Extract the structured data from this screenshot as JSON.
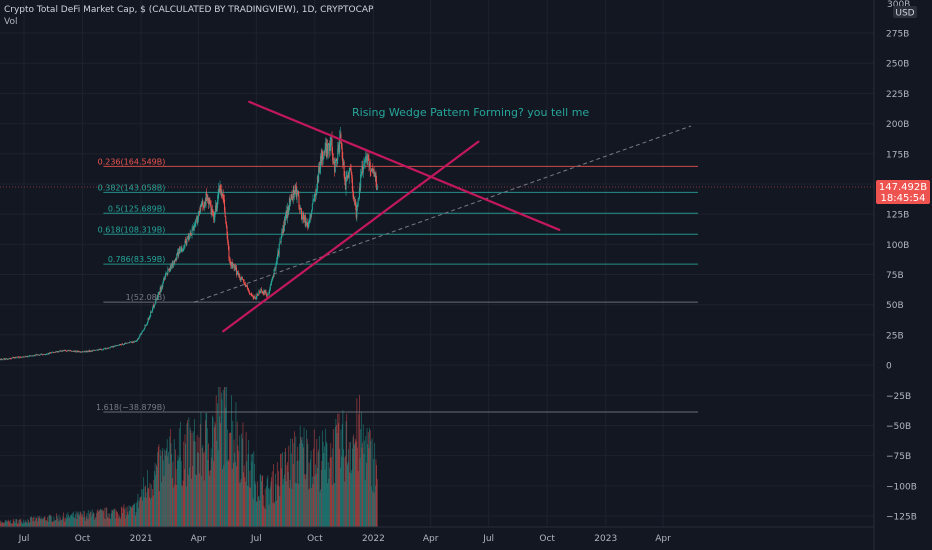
{
  "header": {
    "symbol_title": "Crypto Total DeFi Market Cap, $ (CALCULATED BY TRADINGVIEW), 1D, CRYPTOCAP",
    "volume_label": "Vol"
  },
  "price_scale": {
    "currency": "USD",
    "top_label": "300B"
  },
  "current_price": {
    "value_label": "147.492B",
    "countdown": "18:45:54",
    "value": 147.492
  },
  "annotation": {
    "text": "Rising Wedge Pattern Forming? you tell me"
  },
  "colors": {
    "background": "#131722",
    "candle_up": "#26a69a",
    "candle_down": "#ef5350",
    "wedge_line": "#c2185b",
    "annotation_text": "#26a69a",
    "fib_level_red": "#ef5350",
    "fib_level_teal": "#26a69a",
    "fib_level_gray": "#787b86",
    "trend_extension": "#787b86"
  },
  "chart_data": {
    "type": "candlestick",
    "title": "Crypto Total DeFi Market Cap, $ (CALCULATED BY TRADINGVIEW), 1D, CRYPTOCAP",
    "y_unit": "B",
    "ylim": [
      -135,
      300
    ],
    "y_ticks": [
      {
        "label": "275B",
        "value": 275
      },
      {
        "label": "250B",
        "value": 250
      },
      {
        "label": "225B",
        "value": 225
      },
      {
        "label": "200B",
        "value": 200
      },
      {
        "label": "175B",
        "value": 175
      },
      {
        "label": "150B",
        "value": 150
      },
      {
        "label": "125B",
        "value": 125
      },
      {
        "label": "100B",
        "value": 100
      },
      {
        "label": "75B",
        "value": 75
      },
      {
        "label": "50B",
        "value": 50
      },
      {
        "label": "25B",
        "value": 25
      },
      {
        "label": "0",
        "value": 0
      },
      {
        "label": "−25B",
        "value": -25
      },
      {
        "label": "−50B",
        "value": -50
      },
      {
        "label": "−75B",
        "value": -75
      },
      {
        "label": "−100B",
        "value": -100
      },
      {
        "label": "−125B",
        "value": -125
      }
    ],
    "x_ticks": [
      {
        "label": "Jul",
        "date": "2020-07-01"
      },
      {
        "label": "Oct",
        "date": "2020-10-01"
      },
      {
        "label": "2021",
        "date": "2021-01-01"
      },
      {
        "label": "Apr",
        "date": "2021-04-01"
      },
      {
        "label": "Jul",
        "date": "2021-07-01"
      },
      {
        "label": "Oct",
        "date": "2021-10-01"
      },
      {
        "label": "2022",
        "date": "2022-01-01"
      },
      {
        "label": "Apr",
        "date": "2022-04-01"
      },
      {
        "label": "Jul",
        "date": "2022-07-01"
      },
      {
        "label": "Oct",
        "date": "2022-10-01"
      },
      {
        "label": "2023",
        "date": "2023-01-01"
      },
      {
        "label": "Apr",
        "date": "2023-04-01"
      }
    ],
    "price_path": [
      [
        "2020-05-01",
        4
      ],
      [
        "2020-06-01",
        5
      ],
      [
        "2020-07-01",
        7
      ],
      [
        "2020-08-01",
        9
      ],
      [
        "2020-09-01",
        12
      ],
      [
        "2020-10-01",
        11
      ],
      [
        "2020-11-01",
        13
      ],
      [
        "2020-12-01",
        17
      ],
      [
        "2020-12-25",
        20
      ],
      [
        "2021-01-10",
        35
      ],
      [
        "2021-01-25",
        55
      ],
      [
        "2021-02-10",
        75
      ],
      [
        "2021-02-25",
        90
      ],
      [
        "2021-03-10",
        100
      ],
      [
        "2021-03-25",
        115
      ],
      [
        "2021-04-05",
        130
      ],
      [
        "2021-04-15",
        140
      ],
      [
        "2021-04-25",
        120
      ],
      [
        "2021-05-05",
        148
      ],
      [
        "2021-05-12",
        130
      ],
      [
        "2021-05-20",
        85
      ],
      [
        "2021-05-30",
        78
      ],
      [
        "2021-06-10",
        70
      ],
      [
        "2021-06-20",
        60
      ],
      [
        "2021-06-28",
        55
      ],
      [
        "2021-07-08",
        62
      ],
      [
        "2021-07-20",
        58
      ],
      [
        "2021-07-28",
        75
      ],
      [
        "2021-08-05",
        95
      ],
      [
        "2021-08-15",
        120
      ],
      [
        "2021-08-25",
        140
      ],
      [
        "2021-09-01",
        145
      ],
      [
        "2021-09-10",
        125
      ],
      [
        "2021-09-20",
        115
      ],
      [
        "2021-10-01",
        140
      ],
      [
        "2021-10-10",
        170
      ],
      [
        "2021-10-20",
        180
      ],
      [
        "2021-10-26",
        185
      ],
      [
        "2021-11-01",
        165
      ],
      [
        "2021-11-10",
        185
      ],
      [
        "2021-11-18",
        150
      ],
      [
        "2021-11-25",
        165
      ],
      [
        "2021-12-01",
        140
      ],
      [
        "2021-12-05",
        125
      ],
      [
        "2021-12-12",
        155
      ],
      [
        "2021-12-20",
        175
      ],
      [
        "2021-12-26",
        165
      ],
      [
        "2022-01-02",
        160
      ],
      [
        "2022-01-07",
        147
      ]
    ],
    "volume_path": [
      [
        "2020-05-01",
        2
      ],
      [
        "2020-08-01",
        5
      ],
      [
        "2020-11-01",
        8
      ],
      [
        "2020-12-20",
        10
      ],
      [
        "2021-01-10",
        25
      ],
      [
        "2021-02-10",
        40
      ],
      [
        "2021-03-10",
        45
      ],
      [
        "2021-04-10",
        48
      ],
      [
        "2021-05-15",
        70
      ],
      [
        "2021-06-15",
        40
      ],
      [
        "2021-07-15",
        20
      ],
      [
        "2021-08-15",
        35
      ],
      [
        "2021-09-10",
        45
      ],
      [
        "2021-10-10",
        40
      ],
      [
        "2021-11-10",
        48
      ],
      [
        "2021-12-10",
        55
      ],
      [
        "2022-01-07",
        35
      ]
    ],
    "fib_levels": [
      {
        "label": "0.236(164.549B)",
        "value": 164.549,
        "color": "#ef5350"
      },
      {
        "label": "0.382(143.058B)",
        "value": 143.058,
        "color": "#26a69a"
      },
      {
        "label": "0.5(125.689B)",
        "value": 125.689,
        "color": "#26a69a"
      },
      {
        "label": "0.618(108.319B)",
        "value": 108.319,
        "color": "#26a69a"
      },
      {
        "label": "0.786(83.59B)",
        "value": 83.59,
        "color": "#26a69a"
      },
      {
        "label": "1(52.08B)",
        "value": 52.08,
        "color": "#787b86"
      },
      {
        "label": "1.618(−38.879B)",
        "value": -38.879,
        "color": "#787b86"
      }
    ],
    "wedge_lines": [
      {
        "name": "upper-resistance",
        "from": [
          "2021-06-20",
          218
        ],
        "to": [
          "2022-10-20",
          112
        ]
      },
      {
        "name": "lower-support",
        "from": [
          "2021-05-10",
          28
        ],
        "to": [
          "2022-06-15",
          185
        ]
      }
    ],
    "trend_extension": {
      "from": [
        "2021-03-25",
        52
      ],
      "to": [
        "2023-05-15",
        198
      ]
    }
  }
}
